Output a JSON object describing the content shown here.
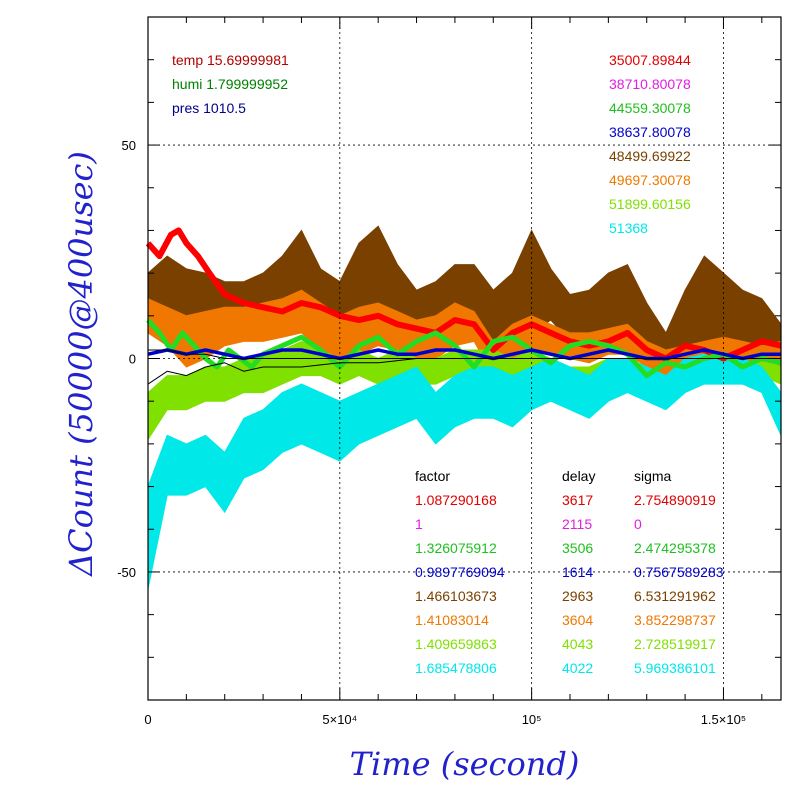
{
  "chart_data": {
    "type": "line",
    "xlabel": "Time (second)",
    "ylabel": "ΔCount (50000@400usec)",
    "xlim": [
      0,
      165000
    ],
    "ylim": [
      -80,
      80
    ],
    "x_ticks": [
      {
        "value": 0,
        "label": "0"
      },
      {
        "value": 50000,
        "label": "5×10⁴"
      },
      {
        "value": 100000,
        "label": "10⁵"
      },
      {
        "value": 150000,
        "label": "1.5×10⁵"
      }
    ],
    "y_ticks": [
      {
        "value": 50,
        "label": "50"
      },
      {
        "value": 0,
        "label": "0"
      },
      {
        "value": -50,
        "label": "-50"
      }
    ],
    "grid": true,
    "env": [
      {
        "label": "temp 15.69999981",
        "color": "#b00000"
      },
      {
        "label": "humi 1.799999952",
        "color": "#008000"
      },
      {
        "label": "pres 1010.5",
        "color": "#00008b"
      }
    ],
    "legend_values": [
      {
        "label": "35007.89844",
        "color": "#e00000"
      },
      {
        "label": "38710.80078",
        "color": "#e020e0"
      },
      {
        "label": "44559.30078",
        "color": "#20c020"
      },
      {
        "label": "38637.80078",
        "color": "#0000cc"
      },
      {
        "label": "48499.69922",
        "color": "#7a4000"
      },
      {
        "label": "49697.30078",
        "color": "#f07800"
      },
      {
        "label": "51899.60156",
        "color": "#80e000"
      },
      {
        "label": "51368",
        "color": "#00e8e8"
      }
    ],
    "table_headers": [
      "factor",
      "delay",
      "sigma"
    ],
    "table_rows": [
      {
        "factor": "1.087290168",
        "delay": "3617",
        "sigma": "2.754890919",
        "color": "#e00000"
      },
      {
        "factor": "1",
        "delay": "2115",
        "sigma": "0",
        "color": "#e020e0"
      },
      {
        "factor": "1.326075912",
        "delay": "3506",
        "sigma": "2.474295378",
        "color": "#20c020"
      },
      {
        "factor": "0.9897769094",
        "delay": "1614",
        "sigma": "0.7567589283",
        "color": "#0000cc"
      },
      {
        "factor": "1.466103673",
        "delay": "2963",
        "sigma": "6.531291962",
        "color": "#7a4000"
      },
      {
        "factor": "1.41083014",
        "delay": "3604",
        "sigma": "3.852298737",
        "color": "#f07800"
      },
      {
        "factor": "1.409659863",
        "delay": "4043",
        "sigma": "2.728519917",
        "color": "#80e000"
      },
      {
        "factor": "1.685478806",
        "delay": "4022",
        "sigma": "5.969386101",
        "color": "#00e8e8"
      }
    ],
    "series": [
      {
        "color": "#7a4000",
        "x": [
          0,
          5000,
          10000,
          15000,
          20000,
          25000,
          30000,
          35000,
          40000,
          45000,
          50000,
          55000,
          60000,
          65000,
          70000,
          75000,
          80000,
          85000,
          90000,
          95000,
          100000,
          105000,
          110000,
          115000,
          120000,
          125000,
          130000,
          135000,
          140000,
          145000,
          150000,
          155000,
          160000,
          165000
        ],
        "lower": [
          9,
          8,
          3,
          4,
          6,
          7,
          5,
          9,
          11,
          5,
          2,
          3,
          6,
          9,
          5,
          2,
          3,
          6,
          0,
          2,
          6,
          9,
          4,
          1,
          2,
          4,
          0,
          -6,
          -2,
          0,
          1,
          0,
          3,
          -5
        ],
        "upper": [
          20,
          24,
          21,
          20,
          18,
          18,
          20,
          24,
          30,
          21,
          18,
          27,
          31,
          22,
          16,
          18,
          22,
          22,
          16,
          20,
          30,
          21,
          15,
          16,
          20,
          22,
          13,
          6,
          16,
          24,
          20,
          16,
          14,
          8
        ]
      },
      {
        "color": "#f07800",
        "x": [
          0,
          5000,
          10000,
          15000,
          20000,
          25000,
          30000,
          35000,
          40000,
          45000,
          50000,
          55000,
          60000,
          65000,
          70000,
          75000,
          80000,
          85000,
          90000,
          95000,
          100000,
          105000,
          110000,
          115000,
          120000,
          125000,
          130000,
          135000,
          140000,
          145000,
          150000,
          155000,
          160000,
          165000
        ],
        "lower": [
          6,
          3,
          -2,
          0,
          3,
          4,
          4,
          5,
          6,
          2,
          0,
          1,
          3,
          2,
          0,
          0,
          3,
          4,
          -4,
          0,
          2,
          1,
          0,
          -1,
          1,
          1,
          -2,
          -4,
          -3,
          -2,
          0,
          -1,
          0,
          -2
        ],
        "upper": [
          14,
          12,
          10,
          11,
          12,
          12,
          13,
          14,
          16,
          13,
          10,
          12,
          13,
          11,
          9,
          10,
          13,
          11,
          4,
          8,
          10,
          8,
          6,
          6,
          7,
          8,
          4,
          2,
          3,
          4,
          5,
          4,
          3,
          4
        ]
      },
      {
        "color": "#80e000",
        "x": [
          0,
          5000,
          10000,
          15000,
          20000,
          25000,
          30000,
          35000,
          40000,
          45000,
          50000,
          55000,
          60000,
          65000,
          70000,
          75000,
          80000,
          85000,
          90000,
          95000,
          100000,
          105000,
          110000,
          115000,
          120000,
          125000,
          130000,
          135000,
          140000,
          145000,
          150000,
          155000,
          160000,
          165000
        ],
        "lower": [
          -19,
          -12,
          -12,
          -10,
          -10,
          -8,
          -8,
          -6,
          -4,
          -4,
          -6,
          -4,
          -6,
          -4,
          -6,
          -6,
          -4,
          -4,
          -2,
          -4,
          -2,
          -4,
          -6,
          -6,
          -4,
          -4,
          -6,
          -8,
          -6,
          -4,
          -4,
          -6,
          -4,
          -6
        ],
        "upper": [
          -8,
          -4,
          -4,
          -2,
          -2,
          0,
          1,
          2,
          4,
          2,
          0,
          2,
          0,
          2,
          0,
          0,
          2,
          2,
          2,
          0,
          2,
          0,
          -2,
          -2,
          0,
          0,
          -2,
          -4,
          -2,
          0,
          0,
          -2,
          0,
          -2
        ]
      },
      {
        "color": "#00e8e8",
        "x": [
          0,
          5000,
          10000,
          15000,
          20000,
          25000,
          30000,
          35000,
          40000,
          45000,
          50000,
          55000,
          60000,
          65000,
          70000,
          75000,
          80000,
          85000,
          90000,
          95000,
          100000,
          105000,
          110000,
          115000,
          120000,
          125000,
          130000,
          135000,
          140000,
          145000,
          150000,
          155000,
          160000,
          165000
        ],
        "lower": [
          -54,
          -32,
          -32,
          -30,
          -36,
          -28,
          -26,
          -22,
          -20,
          -22,
          -24,
          -20,
          -18,
          -16,
          -14,
          -20,
          -16,
          -14,
          -14,
          -16,
          -12,
          -10,
          -12,
          -14,
          -10,
          -8,
          -10,
          -12,
          -8,
          -6,
          -6,
          -6,
          -8,
          -18
        ],
        "upper": [
          -30,
          -18,
          -20,
          -18,
          -22,
          -14,
          -12,
          -8,
          -6,
          -8,
          -10,
          -8,
          -6,
          -4,
          -2,
          -8,
          -4,
          -2,
          -2,
          -4,
          -2,
          0,
          -2,
          -4,
          0,
          0,
          -2,
          -4,
          0,
          1,
          1,
          0,
          -2,
          -8
        ]
      },
      {
        "color": "#ff0000",
        "width": 6,
        "x": [
          0,
          3000,
          6000,
          8000,
          10000,
          13000,
          16000,
          20000,
          25000,
          30000,
          35000,
          40000,
          45000,
          50000,
          55000,
          60000,
          65000,
          70000,
          75000,
          80000,
          85000,
          90000,
          95000,
          100000,
          105000,
          110000,
          115000,
          120000,
          125000,
          130000,
          135000,
          140000,
          145000,
          150000,
          155000,
          160000,
          165000
        ],
        "y": [
          27,
          24,
          29,
          30,
          27,
          24,
          20,
          15,
          13,
          12,
          11,
          13,
          12,
          10,
          9,
          10,
          8,
          7,
          6,
          9,
          8,
          2,
          6,
          8,
          6,
          4,
          3,
          4,
          6,
          2,
          0,
          3,
          2,
          0,
          2,
          4,
          3
        ]
      },
      {
        "color": "#22dd22",
        "width": 5,
        "x": [
          0,
          3000,
          6000,
          9000,
          12000,
          15000,
          18000,
          21000,
          24000,
          27000,
          30000,
          35000,
          40000,
          45000,
          50000,
          55000,
          60000,
          65000,
          70000,
          75000,
          80000,
          85000,
          90000,
          95000,
          100000,
          105000,
          110000,
          115000,
          120000,
          125000,
          130000,
          135000,
          140000,
          145000,
          150000,
          155000,
          160000,
          165000
        ],
        "y": [
          9,
          6,
          2,
          6,
          3,
          0,
          -2,
          2,
          0,
          -2,
          1,
          3,
          5,
          2,
          -2,
          3,
          5,
          1,
          4,
          6,
          3,
          -2,
          4,
          5,
          2,
          -1,
          3,
          4,
          3,
          1,
          -4,
          -1,
          -2,
          0,
          1,
          -2,
          0,
          -1
        ]
      },
      {
        "color": "#0000cc",
        "width": 3.5,
        "x": [
          0,
          5000,
          10000,
          15000,
          20000,
          25000,
          30000,
          35000,
          40000,
          45000,
          50000,
          55000,
          60000,
          65000,
          70000,
          75000,
          80000,
          85000,
          90000,
          95000,
          100000,
          105000,
          110000,
          115000,
          120000,
          125000,
          130000,
          135000,
          140000,
          145000,
          150000,
          155000,
          160000,
          165000
        ],
        "y": [
          1,
          2,
          1,
          2,
          1,
          0,
          1,
          2,
          2,
          1,
          0,
          1,
          2,
          1,
          1,
          2,
          2,
          1,
          0,
          1,
          2,
          1,
          0,
          1,
          2,
          1,
          0,
          0,
          1,
          2,
          1,
          0,
          1,
          1
        ]
      },
      {
        "color": "#000000",
        "width": 1,
        "x": [
          0,
          5000,
          10000,
          15000,
          20000,
          25000,
          30000,
          40000,
          50000,
          60000,
          70000,
          80000,
          90000,
          100000,
          110000,
          120000,
          130000,
          140000,
          150000,
          160000,
          165000
        ],
        "y": [
          -6,
          -3,
          -4,
          -2,
          -1,
          -3,
          -2,
          -2,
          -1,
          -1,
          0,
          0,
          0,
          0,
          0,
          0,
          0,
          0,
          0,
          0,
          0
        ]
      },
      {
        "color": "#000000",
        "width": 1,
        "x": [
          0,
          5000,
          10000,
          15000,
          20000,
          25000,
          30000,
          40000,
          50000,
          60000,
          70000,
          80000,
          90000,
          100000,
          110000,
          120000,
          130000,
          140000,
          150000,
          160000,
          165000
        ],
        "y": [
          2,
          2,
          1,
          1,
          0,
          0,
          0,
          0,
          0,
          0,
          0,
          0,
          0,
          0,
          0,
          0,
          0,
          0,
          0,
          0,
          0
        ]
      }
    ]
  }
}
